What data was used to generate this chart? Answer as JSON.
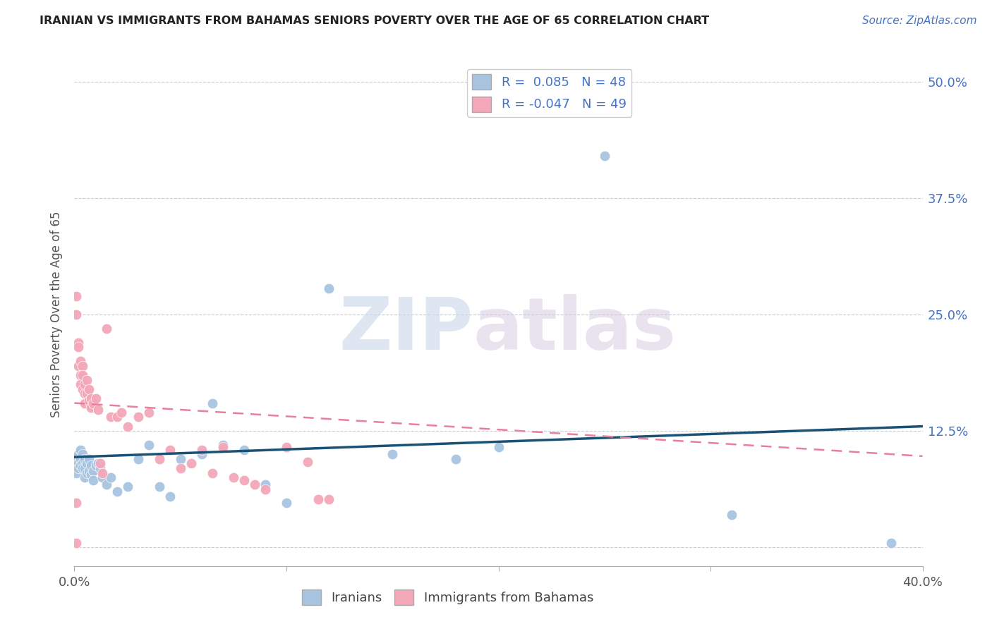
{
  "title": "IRANIAN VS IMMIGRANTS FROM BAHAMAS SENIORS POVERTY OVER THE AGE OF 65 CORRELATION CHART",
  "source": "Source: ZipAtlas.com",
  "ylabel": "Seniors Poverty Over the Age of 65",
  "xlim": [
    0.0,
    0.4
  ],
  "ylim": [
    -0.02,
    0.52
  ],
  "yticks": [
    0.0,
    0.125,
    0.25,
    0.375,
    0.5
  ],
  "ytick_labels": [
    "",
    "12.5%",
    "25.0%",
    "37.5%",
    "50.0%"
  ],
  "xticks": [
    0.0,
    0.1,
    0.2,
    0.3,
    0.4
  ],
  "xtick_labels": [
    "0.0%",
    "",
    "",
    "",
    "40.0%"
  ],
  "iranian_R": 0.085,
  "iranian_N": 48,
  "bahamas_R": -0.047,
  "bahamas_N": 49,
  "iranian_color": "#a8c4e0",
  "bahamas_color": "#f4a7b9",
  "trend_iranian_color": "#1a5276",
  "trend_bahamas_color": "#e87fa0",
  "background_color": "#ffffff",
  "grid_color": "#cccccc",
  "watermark_zip": "ZIP",
  "watermark_atlas": "atlas",
  "iranian_x": [
    0.001,
    0.001,
    0.002,
    0.002,
    0.002,
    0.003,
    0.003,
    0.003,
    0.004,
    0.004,
    0.004,
    0.005,
    0.005,
    0.005,
    0.006,
    0.006,
    0.007,
    0.007,
    0.008,
    0.008,
    0.009,
    0.009,
    0.01,
    0.011,
    0.012,
    0.013,
    0.015,
    0.017,
    0.02,
    0.025,
    0.03,
    0.035,
    0.04,
    0.045,
    0.05,
    0.06,
    0.065,
    0.07,
    0.08,
    0.09,
    0.1,
    0.12,
    0.15,
    0.18,
    0.2,
    0.25,
    0.31,
    0.385
  ],
  "iranian_y": [
    0.095,
    0.08,
    0.1,
    0.09,
    0.085,
    0.105,
    0.095,
    0.088,
    0.1,
    0.09,
    0.085,
    0.095,
    0.085,
    0.075,
    0.09,
    0.08,
    0.095,
    0.082,
    0.088,
    0.078,
    0.082,
    0.072,
    0.088,
    0.09,
    0.085,
    0.075,
    0.068,
    0.075,
    0.06,
    0.065,
    0.095,
    0.11,
    0.065,
    0.055,
    0.095,
    0.1,
    0.155,
    0.11,
    0.105,
    0.068,
    0.048,
    0.278,
    0.1,
    0.095,
    0.108,
    0.42,
    0.035,
    0.005
  ],
  "bahamas_x": [
    0.001,
    0.001,
    0.001,
    0.002,
    0.002,
    0.002,
    0.003,
    0.003,
    0.003,
    0.004,
    0.004,
    0.004,
    0.005,
    0.005,
    0.005,
    0.006,
    0.006,
    0.007,
    0.007,
    0.008,
    0.008,
    0.009,
    0.01,
    0.011,
    0.012,
    0.013,
    0.015,
    0.017,
    0.02,
    0.022,
    0.025,
    0.03,
    0.035,
    0.04,
    0.045,
    0.05,
    0.055,
    0.06,
    0.065,
    0.07,
    0.075,
    0.08,
    0.085,
    0.09,
    0.1,
    0.11,
    0.115,
    0.12,
    0.001
  ],
  "bahamas_y": [
    0.27,
    0.25,
    0.005,
    0.22,
    0.215,
    0.195,
    0.2,
    0.185,
    0.175,
    0.195,
    0.185,
    0.17,
    0.175,
    0.165,
    0.155,
    0.18,
    0.165,
    0.17,
    0.158,
    0.16,
    0.15,
    0.155,
    0.16,
    0.148,
    0.09,
    0.08,
    0.235,
    0.14,
    0.14,
    0.145,
    0.13,
    0.14,
    0.145,
    0.095,
    0.105,
    0.085,
    0.09,
    0.105,
    0.08,
    0.108,
    0.075,
    0.072,
    0.068,
    0.062,
    0.108,
    0.092,
    0.052,
    0.052,
    0.048
  ],
  "trend_ir_x0": 0.0,
  "trend_ir_x1": 0.4,
  "trend_ir_y0": 0.097,
  "trend_ir_y1": 0.13,
  "trend_bh_x0": 0.0,
  "trend_bh_x1": 0.4,
  "trend_bh_y0": 0.155,
  "trend_bh_y1": 0.098
}
